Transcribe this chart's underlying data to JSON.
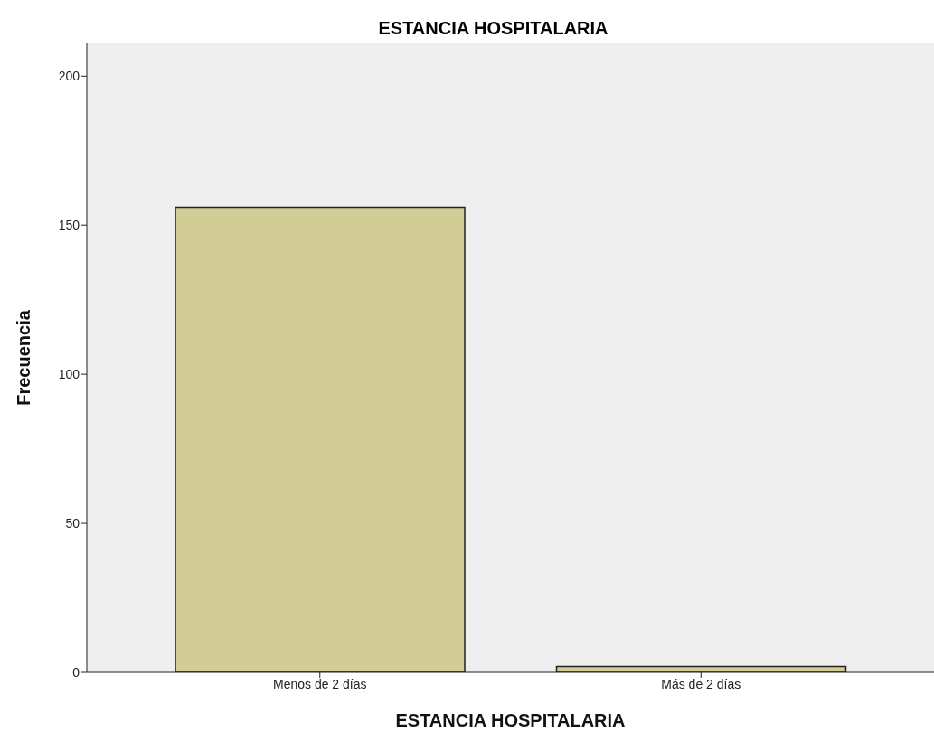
{
  "chart_data": {
    "type": "bar",
    "title": "ESTANCIA HOSPITALARIA",
    "xlabel": "ESTANCIA HOSPITALARIA",
    "ylabel": "Frecuencia",
    "categories": [
      "Menos de 2 días",
      "Más de 2 días"
    ],
    "values": [
      156,
      2
    ],
    "color": "#d2cd96",
    "ylim": [
      0,
      211
    ],
    "yticks": [
      0,
      50,
      100,
      150,
      200
    ]
  }
}
